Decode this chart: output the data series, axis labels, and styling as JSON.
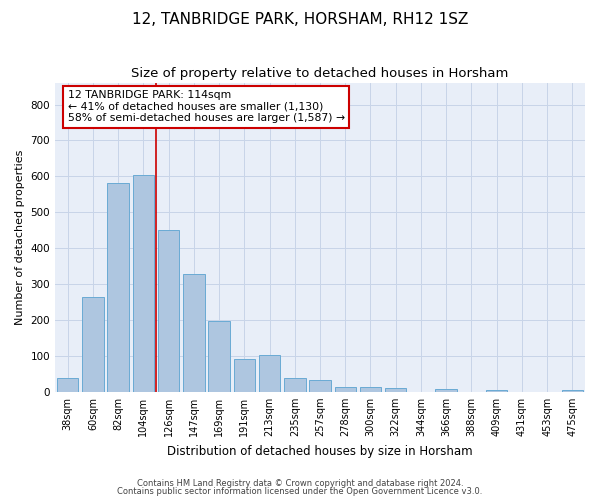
{
  "title": "12, TANBRIDGE PARK, HORSHAM, RH12 1SZ",
  "subtitle": "Size of property relative to detached houses in Horsham",
  "xlabel": "Distribution of detached houses by size in Horsham",
  "ylabel": "Number of detached properties",
  "categories": [
    "38sqm",
    "60sqm",
    "82sqm",
    "104sqm",
    "126sqm",
    "147sqm",
    "169sqm",
    "191sqm",
    "213sqm",
    "235sqm",
    "257sqm",
    "278sqm",
    "300sqm",
    "322sqm",
    "344sqm",
    "366sqm",
    "388sqm",
    "409sqm",
    "431sqm",
    "453sqm",
    "475sqm"
  ],
  "values": [
    38,
    265,
    583,
    603,
    450,
    328,
    196,
    90,
    103,
    38,
    33,
    14,
    13,
    10,
    0,
    8,
    0,
    5,
    0,
    0,
    5
  ],
  "bar_color": "#aec6e0",
  "bar_edge_color": "#6aaad4",
  "vline_x_index": 3.5,
  "vline_color": "#cc0000",
  "annotation_text": "12 TANBRIDGE PARK: 114sqm\n← 41% of detached houses are smaller (1,130)\n58% of semi-detached houses are larger (1,587) →",
  "annotation_box_color": "#ffffff",
  "annotation_box_edge_color": "#cc0000",
  "ylim": [
    0,
    860
  ],
  "yticks": [
    0,
    100,
    200,
    300,
    400,
    500,
    600,
    700,
    800
  ],
  "grid_color": "#c8d4e8",
  "plot_bg_color": "#e8eef8",
  "footer_line1": "Contains HM Land Registry data © Crown copyright and database right 2024.",
  "footer_line2": "Contains public sector information licensed under the Open Government Licence v3.0.",
  "title_fontsize": 11,
  "subtitle_fontsize": 9.5,
  "annotation_fontsize": 7.8,
  "ylabel_fontsize": 8,
  "xlabel_fontsize": 8.5,
  "tick_fontsize": 7,
  "ytick_fontsize": 7.5,
  "footer_fontsize": 6
}
